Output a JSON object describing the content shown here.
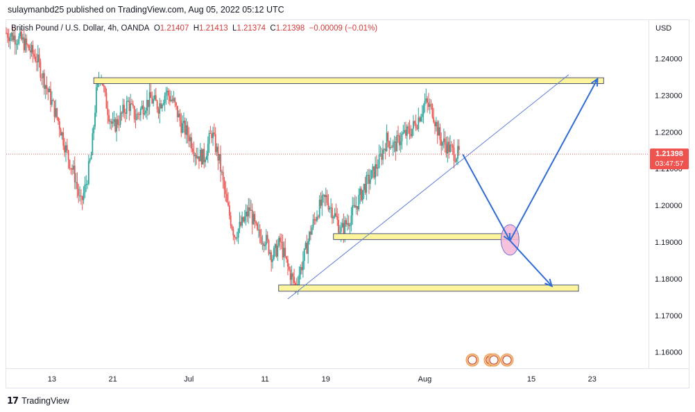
{
  "header": {
    "publisher_line": "sulaymanbd25 published on TradingView.com, Aug 05, 2022 05:12 UTC"
  },
  "legend": {
    "symbol": "British Pound / U.S. Dollar, 4h, OANDA",
    "open_label": "O",
    "open": "1.21407",
    "high_label": "H",
    "high": "1.21413",
    "low_label": "L",
    "low": "1.21374",
    "close_label": "C",
    "close": "1.21398",
    "change": "−0.00009 (−0.01%)"
  },
  "price_axis": {
    "currency": "USD",
    "last_price": "1.21398",
    "countdown": "03:47:57"
  },
  "footer": {
    "brand": "TradingView",
    "logo_glyph": "17"
  },
  "colors": {
    "bull": "#26a69a",
    "bear": "#ef5350",
    "zone_fill": "#fff59d",
    "zone_border": "#1e2a5a",
    "trendline": "#5b7fd6",
    "arrow": "#2f6bd6",
    "target_ellipse": "#f3b6d6",
    "last_price_bg": "#ef5350"
  },
  "chart_data": {
    "type": "candlestick",
    "symbol": "GBPUSD",
    "timeframe": "4h",
    "y_ticks": [
      1.24,
      1.23,
      1.22,
      1.21,
      1.2,
      1.19,
      1.18,
      1.17,
      1.16
    ],
    "y_tick_labels": [
      "1.24000",
      "1.23000",
      "1.22000",
      "1.21000",
      "1.20000",
      "1.19000",
      "1.18000",
      "1.17000",
      "1.16000"
    ],
    "ylim": [
      1.1556,
      1.2505
    ],
    "x_ticks": [
      {
        "label": "13",
        "day": 13
      },
      {
        "label": "21",
        "day": 21
      },
      {
        "label": "Jul",
        "day": 31
      },
      {
        "label": "11",
        "day": 41
      },
      {
        "label": "19",
        "day": 49
      },
      {
        "label": "Aug",
        "day": 62
      },
      {
        "label": "15",
        "day": 76
      },
      {
        "label": "23",
        "day": 84
      }
    ],
    "xlim": [
      7.0,
      91.4
    ],
    "price_path": [
      [
        7.0,
        1.247
      ],
      [
        9.0,
        1.245
      ],
      [
        11.0,
        1.24
      ],
      [
        12.5,
        1.231
      ],
      [
        14.0,
        1.222
      ],
      [
        15.0,
        1.214
      ],
      [
        16.0,
        1.208
      ],
      [
        16.8,
        1.2
      ],
      [
        17.5,
        1.206
      ],
      [
        18.2,
        1.214
      ],
      [
        18.8,
        1.23
      ],
      [
        19.4,
        1.237
      ],
      [
        20.0,
        1.229
      ],
      [
        21.0,
        1.221
      ],
      [
        22.0,
        1.224
      ],
      [
        23.0,
        1.228
      ],
      [
        24.0,
        1.224
      ],
      [
        25.0,
        1.227
      ],
      [
        26.0,
        1.229
      ],
      [
        27.0,
        1.227
      ],
      [
        28.0,
        1.231
      ],
      [
        29.0,
        1.228
      ],
      [
        30.0,
        1.222
      ],
      [
        31.0,
        1.219
      ],
      [
        32.0,
        1.214
      ],
      [
        33.0,
        1.213
      ],
      [
        34.0,
        1.22
      ],
      [
        35.0,
        1.212
      ],
      [
        36.0,
        1.2
      ],
      [
        37.0,
        1.192
      ],
      [
        38.0,
        1.195
      ],
      [
        39.0,
        1.199
      ],
      [
        40.0,
        1.192
      ],
      [
        41.0,
        1.191
      ],
      [
        42.0,
        1.186
      ],
      [
        43.0,
        1.19
      ],
      [
        44.0,
        1.183
      ],
      [
        45.0,
        1.178
      ],
      [
        46.0,
        1.185
      ],
      [
        47.0,
        1.193
      ],
      [
        48.0,
        1.199
      ],
      [
        49.0,
        1.202
      ],
      [
        50.0,
        1.198
      ],
      [
        51.0,
        1.193
      ],
      [
        52.0,
        1.196
      ],
      [
        53.0,
        1.2
      ],
      [
        54.0,
        1.205
      ],
      [
        55.0,
        1.208
      ],
      [
        56.0,
        1.212
      ],
      [
        57.0,
        1.218
      ],
      [
        58.0,
        1.216
      ],
      [
        59.0,
        1.219
      ],
      [
        60.0,
        1.22
      ],
      [
        61.0,
        1.223
      ],
      [
        62.0,
        1.228
      ],
      [
        63.0,
        1.226
      ],
      [
        64.0,
        1.218
      ],
      [
        65.0,
        1.216
      ],
      [
        66.0,
        1.214
      ],
      [
        66.5,
        1.214
      ]
    ],
    "last_price": 1.21398,
    "zones": [
      {
        "x0": 18.5,
        "x1": 85.5,
        "y_low": 1.2332,
        "y_high": 1.2348
      },
      {
        "x0": 50.0,
        "x1": 74.3,
        "y_low": 1.1907,
        "y_high": 1.1923
      },
      {
        "x0": 42.8,
        "x1": 82.2,
        "y_low": 1.1766,
        "y_high": 1.1783
      }
    ],
    "trendline": [
      [
        44.0,
        1.1745
      ],
      [
        80.9,
        1.2356
      ]
    ],
    "projection_path": [
      [
        67.0,
        1.2139
      ],
      [
        73.2,
        1.1904
      ],
      [
        84.7,
        1.2345
      ]
    ],
    "projection_down": [
      [
        73.2,
        1.1904
      ],
      [
        78.7,
        1.178
      ]
    ],
    "target_ellipse": {
      "x": 73.2,
      "y": 1.1906
    }
  }
}
